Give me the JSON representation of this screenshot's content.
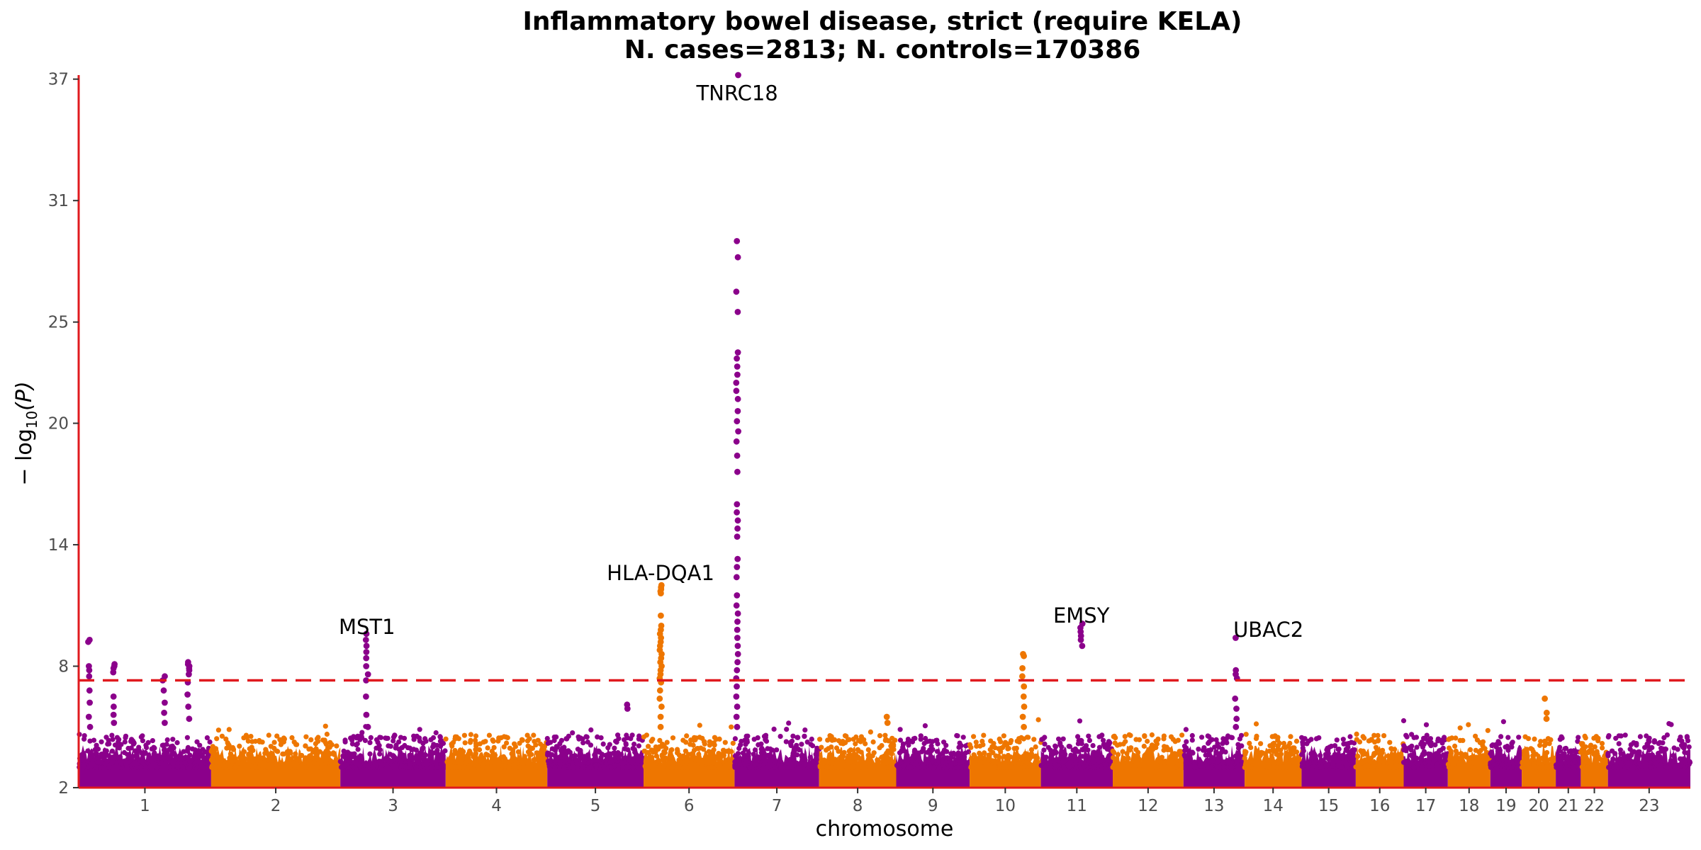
{
  "chart_data": {
    "type": "scatter",
    "subtype": "manhattan",
    "title_line1": "Inflammatory bowel disease, strict (require KELA)",
    "title_line2": "N. cases=2813; N. controls=170386",
    "xlabel": "chromosome",
    "ylabel_prefix": "− log",
    "ylabel_sub": "10",
    "ylabel_suffix": "(P)",
    "ylim": [
      2,
      37.2
    ],
    "yticks": [
      2,
      8,
      14,
      20,
      25,
      31,
      37
    ],
    "significance_threshold": 7.3,
    "colors": {
      "odd": "#8b008b",
      "even": "#ee7600",
      "axis": "#e0191e",
      "threshold": "#e0191e"
    },
    "chromosomes": [
      {
        "label": "1",
        "length": 249
      },
      {
        "label": "2",
        "length": 243
      },
      {
        "label": "3",
        "length": 198
      },
      {
        "label": "4",
        "length": 191
      },
      {
        "label": "5",
        "length": 181
      },
      {
        "label": "6",
        "length": 171
      },
      {
        "label": "7",
        "length": 159
      },
      {
        "label": "8",
        "length": 145
      },
      {
        "label": "9",
        "length": 138
      },
      {
        "label": "10",
        "length": 134
      },
      {
        "label": "11",
        "length": 135
      },
      {
        "label": "12",
        "length": 133
      },
      {
        "label": "13",
        "length": 115
      },
      {
        "label": "14",
        "length": 107
      },
      {
        "label": "15",
        "length": 102
      },
      {
        "label": "16",
        "length": 90
      },
      {
        "label": "17",
        "length": 83
      },
      {
        "label": "18",
        "length": 80
      },
      {
        "label": "19",
        "length": 59
      },
      {
        "label": "20",
        "length": 64
      },
      {
        "label": "21",
        "length": 47
      },
      {
        "label": "22",
        "length": 51
      },
      {
        "label": "23",
        "length": 155
      }
    ],
    "peaks": [
      {
        "chr": "1",
        "pos": 20,
        "values": [
          9.3,
          9.2,
          8.0,
          7.8,
          7.5,
          6.8,
          6.2,
          5.5,
          5.0
        ]
      },
      {
        "chr": "1",
        "pos": 67,
        "values": [
          8.1,
          8.0,
          7.9,
          7.7,
          6.5,
          6.0,
          5.6,
          5.2
        ]
      },
      {
        "chr": "1",
        "pos": 160,
        "values": [
          7.5,
          7.3,
          6.8,
          6.2,
          5.7,
          5.2
        ]
      },
      {
        "chr": "1",
        "pos": 206,
        "values": [
          8.2,
          8.1,
          8.0,
          7.9,
          7.8,
          7.6,
          7.2,
          6.6,
          6.0,
          5.4
        ]
      },
      {
        "chr": "3",
        "pos": 50,
        "values": [
          9.6,
          9.3,
          9.0,
          8.7,
          8.4,
          8.0,
          7.6,
          7.3,
          6.5,
          5.6,
          5.0
        ]
      },
      {
        "chr": "5",
        "pos": 150,
        "values": [
          6.1,
          5.9
        ]
      },
      {
        "chr": "6",
        "pos": 32,
        "values": [
          12.0,
          11.9,
          11.8,
          11.7,
          11.6,
          10.5,
          10.0,
          9.8,
          9.6,
          9.4,
          9.2,
          9.0,
          8.8,
          8.6,
          8.4,
          8.2,
          8.0,
          7.8,
          7.6,
          7.4,
          7.2,
          6.8,
          6.4,
          6.0,
          5.5,
          5.0
        ]
      },
      {
        "chr": "7",
        "pos": 5,
        "values": [
          37.2,
          29.0,
          28.2,
          26.5,
          25.5,
          23.5,
          23.2,
          22.8,
          22.4,
          22.0,
          21.6,
          21.2,
          20.6,
          20.1,
          19.6,
          19.1,
          18.4,
          17.6,
          16.0,
          15.6,
          15.2,
          14.8,
          14.4,
          13.3,
          12.9,
          12.4,
          11.5,
          11.0,
          10.6,
          10.2,
          9.8,
          9.4,
          9.0,
          8.6,
          8.2,
          7.8,
          7.4,
          7.0,
          6.5,
          6.0,
          5.5,
          5.0
        ]
      },
      {
        "chr": "8",
        "pos": 128,
        "values": [
          5.5,
          5.2
        ]
      },
      {
        "chr": "10",
        "pos": 101,
        "values": [
          8.6,
          8.5,
          7.9,
          7.5,
          7.0,
          6.5,
          6.0,
          5.5,
          5.0
        ]
      },
      {
        "chr": "11",
        "pos": 76,
        "values": [
          10.1,
          9.9,
          9.7,
          9.5,
          9.3,
          9.0
        ]
      },
      {
        "chr": "13",
        "pos": 99,
        "values": [
          9.4,
          7.8,
          7.6,
          7.4,
          6.4,
          5.9,
          5.4,
          5.0
        ]
      },
      {
        "chr": "20",
        "pos": 45,
        "values": [
          6.4,
          5.7,
          5.4
        ]
      }
    ],
    "annotations": [
      {
        "label": "TNRC18",
        "chr": "7",
        "pos": 5,
        "y": 36.3
      },
      {
        "label": "HLA-DQA1",
        "chr": "6",
        "pos": 32,
        "y": 12.6
      },
      {
        "label": "MST1",
        "chr": "3",
        "pos": 50,
        "y": 9.95
      },
      {
        "label": "EMSY",
        "chr": "11",
        "pos": 76,
        "y": 10.5
      },
      {
        "label": "UBAC2",
        "chr": "13",
        "pos": 99,
        "y": 9.8,
        "anchor": "start"
      }
    ]
  }
}
